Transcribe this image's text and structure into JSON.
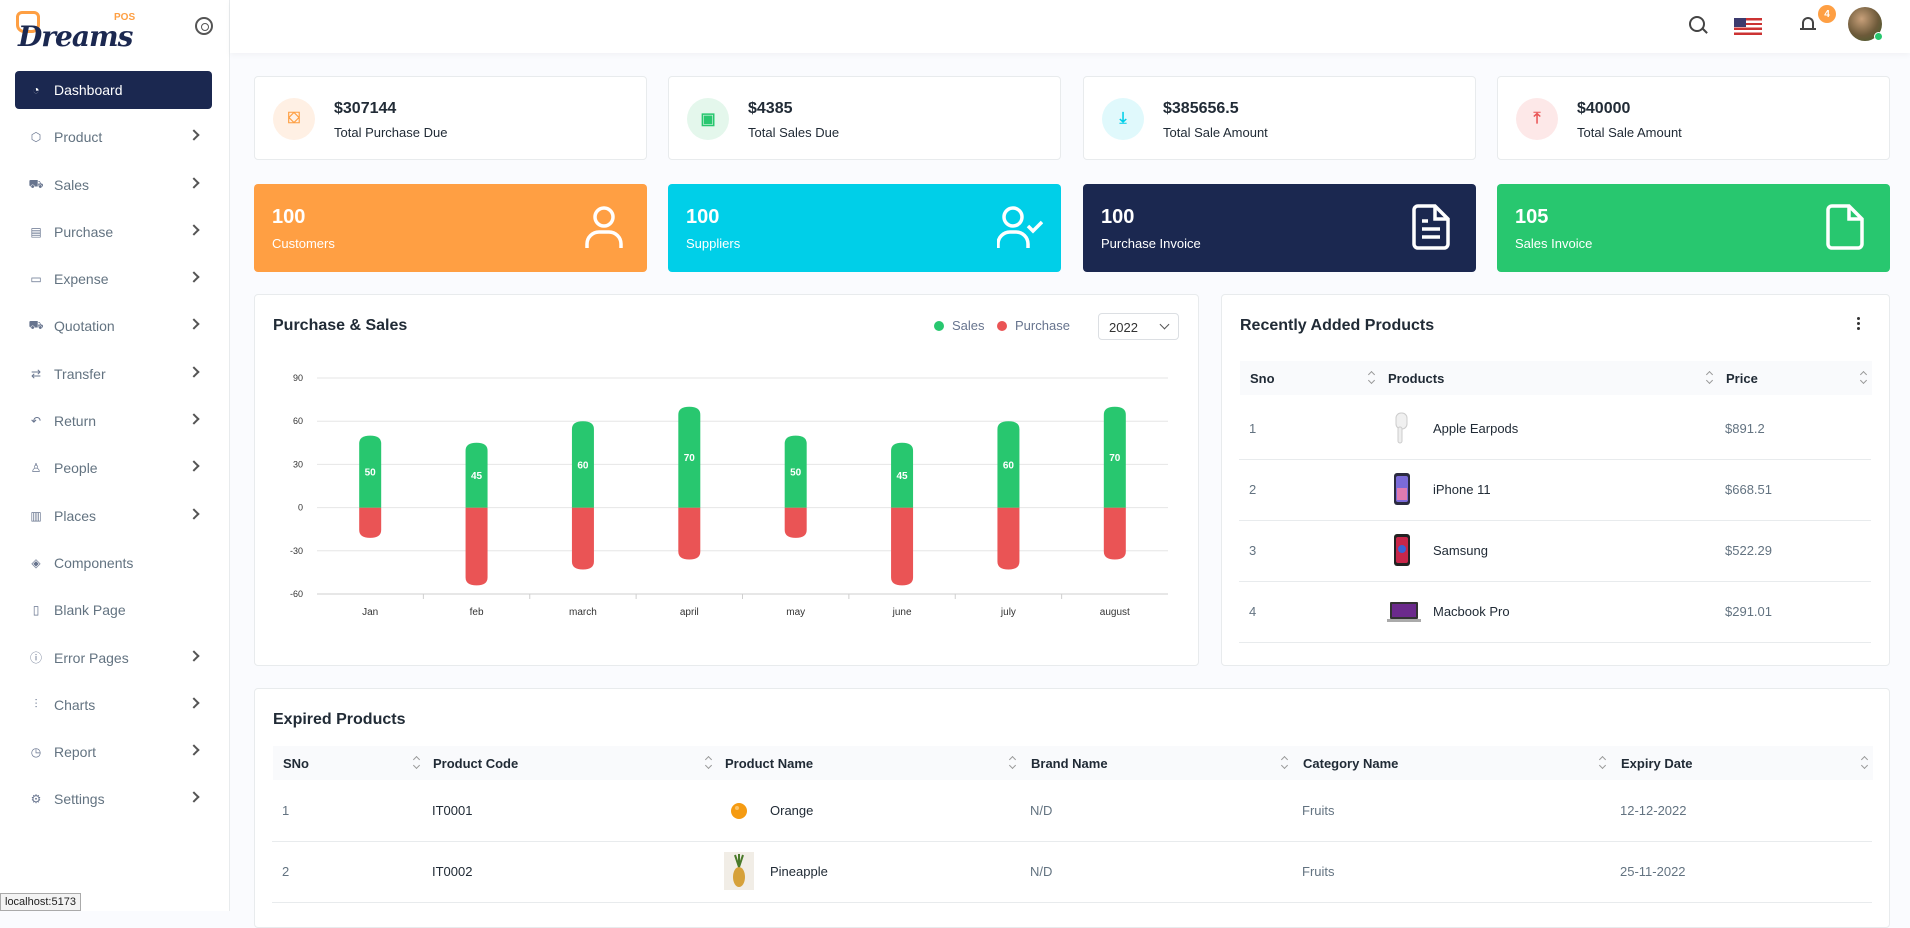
{
  "brand": {
    "name": "Dreams",
    "suffix": "POS"
  },
  "sidebar": {
    "items": [
      {
        "label": "Dashboard",
        "icon": "dashboard-icon",
        "glyph": "◔",
        "active": true,
        "has_children": false
      },
      {
        "label": "Product",
        "icon": "box-icon",
        "glyph": "⬡",
        "active": false,
        "has_children": true
      },
      {
        "label": "Sales",
        "icon": "cart-icon",
        "glyph": "⛟",
        "active": false,
        "has_children": true
      },
      {
        "label": "Purchase",
        "icon": "purchase-icon",
        "glyph": "▤",
        "active": false,
        "has_children": true
      },
      {
        "label": "Expense",
        "icon": "wallet-icon",
        "glyph": "▭",
        "active": false,
        "has_children": true
      },
      {
        "label": "Quotation",
        "icon": "quotation-icon",
        "glyph": "⛟",
        "active": false,
        "has_children": true
      },
      {
        "label": "Transfer",
        "icon": "transfer-icon",
        "glyph": "⇄",
        "active": false,
        "has_children": true
      },
      {
        "label": "Return",
        "icon": "return-icon",
        "glyph": "↶",
        "active": false,
        "has_children": true
      },
      {
        "label": "People",
        "icon": "user-icon",
        "glyph": "♙",
        "active": false,
        "has_children": true
      },
      {
        "label": "Places",
        "icon": "map-icon",
        "glyph": "▥",
        "active": false,
        "has_children": true
      },
      {
        "label": "Components",
        "icon": "layers-icon",
        "glyph": "◈",
        "active": false,
        "has_children": false
      },
      {
        "label": "Blank Page",
        "icon": "file-icon",
        "glyph": "▯",
        "active": false,
        "has_children": false
      },
      {
        "label": "Error Pages",
        "icon": "alert-icon",
        "glyph": "ⓘ",
        "active": false,
        "has_children": true
      },
      {
        "label": "Charts",
        "icon": "chart-icon",
        "glyph": "⫶",
        "active": false,
        "has_children": true
      },
      {
        "label": "Report",
        "icon": "pie-icon",
        "glyph": "◷",
        "active": false,
        "has_children": true
      },
      {
        "label": "Settings",
        "icon": "gear-icon",
        "glyph": "⚙",
        "active": false,
        "has_children": true
      }
    ]
  },
  "header": {
    "notification_count": "4"
  },
  "stats": [
    {
      "value": "$307144",
      "label": "Total Purchase Due",
      "color": "#fe9f43",
      "bg": "#fff0e4",
      "glyph": "⛋"
    },
    {
      "value": "$4385",
      "label": "Total Sales Due",
      "color": "#28c76f",
      "bg": "#e4f7ec",
      "glyph": "▣"
    },
    {
      "value": "$385656.5",
      "label": "Total Sale Amount",
      "color": "#00cfe8",
      "bg": "#e0f9fc",
      "glyph": "⤓"
    },
    {
      "value": "$40000",
      "label": "Total Sale Amount",
      "color": "#ea5455",
      "bg": "#fde8e8",
      "glyph": "⤒"
    }
  ],
  "counts": [
    {
      "value": "100",
      "label": "Customers",
      "color": "#ff9f43",
      "icon": "user-icon"
    },
    {
      "value": "100",
      "label": "Suppliers",
      "color": "#00cfe8",
      "icon": "user-check-icon"
    },
    {
      "value": "100",
      "label": "Purchase Invoice",
      "color": "#1b2850",
      "icon": "file-text-icon"
    },
    {
      "value": "105",
      "label": "Sales Invoice",
      "color": "#28c76f",
      "icon": "file-icon"
    }
  ],
  "purchase_sales": {
    "title": "Purchase & Sales",
    "legend": [
      "Sales",
      "Purchase"
    ],
    "year": "2022"
  },
  "chart_data": {
    "type": "bar",
    "title": "Purchase & Sales",
    "categories": [
      "Jan",
      "feb",
      "march",
      "april",
      "may",
      "june",
      "july",
      "august"
    ],
    "series": [
      {
        "name": "Sales",
        "color": "#28c76f",
        "values": [
          50,
          45,
          60,
          70,
          50,
          45,
          60,
          70
        ]
      },
      {
        "name": "Purchase",
        "color": "#ea5455",
        "values": [
          -21,
          -54,
          -43,
          -36,
          -21,
          -54,
          -43,
          -36
        ]
      }
    ],
    "ylim": [
      -60,
      90
    ],
    "yticks": [
      90,
      60,
      30,
      0,
      -30,
      -60
    ],
    "grid": true
  },
  "recent_products": {
    "title": "Recently Added Products",
    "columns": [
      "Sno",
      "Products",
      "Price"
    ],
    "rows": [
      {
        "sno": "1",
        "name": "Apple Earpods",
        "price": "$891.2",
        "thumb": "earpods"
      },
      {
        "sno": "2",
        "name": "iPhone 11",
        "price": "$668.51",
        "thumb": "phone"
      },
      {
        "sno": "3",
        "name": "Samsung",
        "price": "$522.29",
        "thumb": "phone2"
      },
      {
        "sno": "4",
        "name": "Macbook Pro",
        "price": "$291.01",
        "thumb": "laptop"
      }
    ]
  },
  "expired_products": {
    "title": "Expired Products",
    "columns": [
      "SNo",
      "Product Code",
      "Product Name",
      "Brand Name",
      "Category Name",
      "Expiry Date"
    ],
    "rows": [
      {
        "sno": "1",
        "code": "IT0001",
        "name": "Orange",
        "brand": "N/D",
        "category": "Fruits",
        "expiry": "12-12-2022",
        "thumb": "orange"
      },
      {
        "sno": "2",
        "code": "IT0002",
        "name": "Pineapple",
        "brand": "N/D",
        "category": "Fruits",
        "expiry": "25-11-2022",
        "thumb": "pineapple"
      }
    ]
  },
  "status_bar": {
    "url": "localhost:5173"
  }
}
